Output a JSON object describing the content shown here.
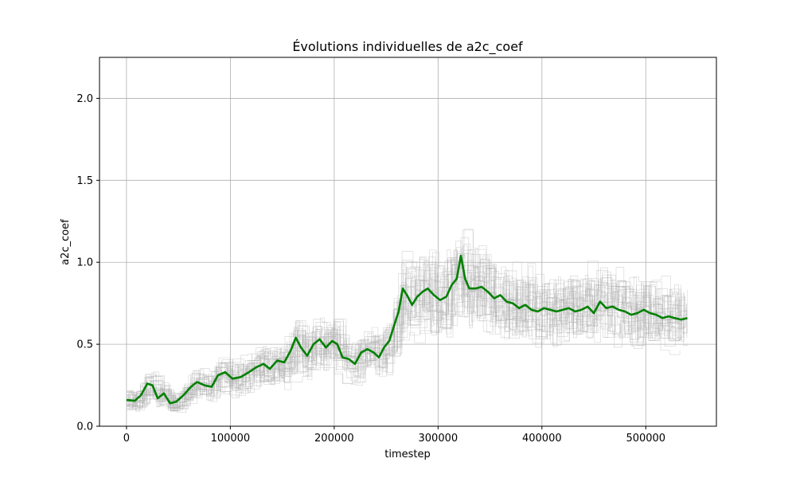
{
  "chart_data": {
    "type": "line",
    "title": "Évolutions individuelles de a2c_coef",
    "xlabel": "timestep",
    "ylabel": "a2c_coef",
    "xlim": [
      -26000,
      568000
    ],
    "ylim": [
      0,
      2.25
    ],
    "xticks": [
      0,
      100000,
      200000,
      300000,
      400000,
      500000
    ],
    "xtick_labels": [
      "0",
      "100000",
      "200000",
      "300000",
      "400000",
      "500000"
    ],
    "yticks": [
      0.0,
      0.5,
      1.0,
      1.5,
      2.0
    ],
    "ytick_labels": [
      "0.0",
      "0.5",
      "1.0",
      "1.5",
      "2.0"
    ],
    "grid": true,
    "legend": "none",
    "colors": {
      "mean": "#008000",
      "individual": "#b0b0b0",
      "grid": "#b0b0b0"
    },
    "individual_run_count": 30,
    "series": [
      {
        "role": "mean",
        "x": [
          0,
          8000,
          14000,
          20000,
          25000,
          30000,
          36000,
          42000,
          48000,
          55000,
          62000,
          68000,
          75000,
          82000,
          88000,
          95000,
          102000,
          110000,
          118000,
          125000,
          132000,
          138000,
          145000,
          152000,
          158000,
          163000,
          168000,
          174000,
          180000,
          186000,
          192000,
          198000,
          203000,
          208000,
          214000,
          220000,
          226000,
          232000,
          238000,
          243000,
          248000,
          253000,
          258000,
          262000,
          266000,
          270000,
          275000,
          280000,
          285000,
          290000,
          296000,
          302000,
          308000,
          313000,
          318000,
          322000,
          326000,
          330000,
          336000,
          342000,
          348000,
          354000,
          360000,
          366000,
          372000,
          378000,
          384000,
          390000,
          396000,
          402000,
          408000,
          414000,
          420000,
          426000,
          432000,
          438000,
          444000,
          450000,
          456000,
          462000,
          468000,
          474000,
          480000,
          486000,
          492000,
          498000,
          504000,
          510000,
          516000,
          522000,
          528000,
          534000,
          540000
        ],
        "y": [
          0.16,
          0.155,
          0.19,
          0.26,
          0.25,
          0.17,
          0.2,
          0.14,
          0.15,
          0.19,
          0.24,
          0.27,
          0.25,
          0.24,
          0.31,
          0.33,
          0.29,
          0.3,
          0.33,
          0.36,
          0.38,
          0.35,
          0.4,
          0.39,
          0.46,
          0.54,
          0.48,
          0.43,
          0.5,
          0.53,
          0.48,
          0.52,
          0.5,
          0.42,
          0.41,
          0.38,
          0.45,
          0.47,
          0.45,
          0.42,
          0.48,
          0.52,
          0.62,
          0.7,
          0.84,
          0.8,
          0.74,
          0.79,
          0.82,
          0.84,
          0.8,
          0.77,
          0.79,
          0.86,
          0.9,
          1.04,
          0.9,
          0.84,
          0.84,
          0.85,
          0.82,
          0.78,
          0.8,
          0.76,
          0.75,
          0.72,
          0.74,
          0.71,
          0.7,
          0.72,
          0.71,
          0.7,
          0.71,
          0.72,
          0.7,
          0.71,
          0.73,
          0.69,
          0.76,
          0.72,
          0.73,
          0.71,
          0.7,
          0.68,
          0.69,
          0.71,
          0.69,
          0.68,
          0.66,
          0.67,
          0.66,
          0.65,
          0.66
        ]
      }
    ]
  }
}
